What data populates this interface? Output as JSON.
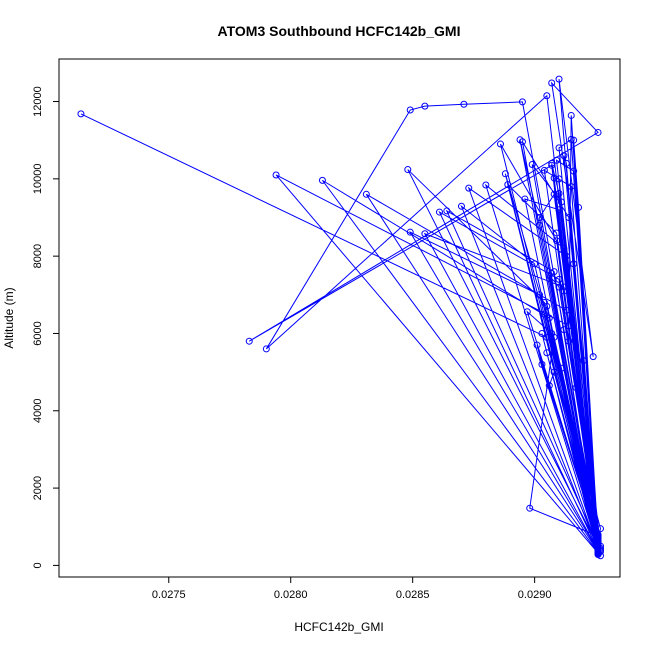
{
  "chart_data": {
    "type": "line",
    "title": "ATOM3 Southbound HCFC142b_GMI",
    "xlabel": "HCFC142b_GMI",
    "ylabel": "Altitude (m)",
    "xlim": [
      0.02705,
      0.02935
    ],
    "ylim": [
      -300,
      13100
    ],
    "xticks": [
      0.0275,
      0.028,
      0.0285,
      0.029
    ],
    "xtick_labels": [
      "0.0275",
      "0.0280",
      "0.0285",
      "0.0290"
    ],
    "yticks": [
      0,
      2000,
      4000,
      6000,
      8000,
      10000,
      12000
    ],
    "ytick_labels": [
      "0",
      "2000",
      "4000",
      "6000",
      "8000",
      "10000",
      "12000"
    ],
    "grid": false,
    "markers": "open-circle",
    "series": [
      {
        "color": "#0000ff",
        "x": [
          0.02714,
          0.02905,
          0.02926,
          0.02905,
          0.02927,
          0.02905,
          0.0279,
          0.02849,
          0.02855,
          0.02871,
          0.02895,
          0.02912,
          0.02926,
          0.0291,
          0.02924,
          0.02907,
          0.02926,
          0.02783,
          0.02907,
          0.02926,
          0.02903,
          0.02926,
          0.02794,
          0.02914,
          0.02926,
          0.02813,
          0.02906,
          0.02926,
          0.02831,
          0.02913,
          0.02927,
          0.02848,
          0.02904,
          0.02926,
          0.02849,
          0.02902,
          0.02926,
          0.02855,
          0.02912,
          0.02926,
          0.02861,
          0.0291,
          0.02927,
          0.02864,
          0.02908,
          0.02926,
          0.0287,
          0.029,
          0.02926,
          0.02873,
          0.02913,
          0.02926,
          0.0288,
          0.02912,
          0.02927,
          0.02886,
          0.02909,
          0.02926,
          0.02889,
          0.02909,
          0.02926,
          0.02894,
          0.02902,
          0.02926,
          0.02895,
          0.02914,
          0.02926,
          0.02896,
          0.0291,
          0.02926,
          0.02899,
          0.02911,
          0.02927,
          0.02902,
          0.02908,
          0.02926,
          0.02904,
          0.02915,
          0.02926,
          0.02908,
          0.0291,
          0.02926,
          0.02909,
          0.02916,
          0.02926,
          0.0291,
          0.02907,
          0.02926,
          0.02913,
          0.02912,
          0.02926,
          0.02915,
          0.0291,
          0.02926,
          0.02918,
          0.02916,
          0.02926,
          0.02908,
          0.02906,
          0.02926,
          0.02901,
          0.02903,
          0.02926,
          0.02897,
          0.02907,
          0.02926,
          0.02916,
          0.0292,
          0.02926,
          0.02888,
          0.02911,
          0.02926,
          0.02908,
          0.02927,
          0.02926,
          0.02915,
          0.02914,
          0.02926,
          0.02905,
          0.02904,
          0.02926,
          0.02912,
          0.02917,
          0.02926,
          0.02898,
          0.02908,
          0.02926,
          0.02906,
          0.0291,
          0.02926
        ],
        "y": [
          11680,
          5900,
          300,
          5500,
          250,
          12150,
          5600,
          11780,
          11880,
          11930,
          11990,
          6100,
          280,
          12580,
          5400,
          12480,
          11200,
          5800,
          10350,
          300,
          6000,
          320,
          10100,
          6200,
          330,
          9960,
          6400,
          350,
          9600,
          6600,
          360,
          10240,
          6800,
          370,
          8620,
          7000,
          380,
          8580,
          7200,
          390,
          9140,
          7400,
          400,
          9170,
          7600,
          410,
          9290,
          7800,
          420,
          9760,
          8000,
          430,
          9840,
          8200,
          440,
          10900,
          8400,
          450,
          9850,
          8600,
          460,
          11010,
          8800,
          470,
          10960,
          9000,
          480,
          9480,
          9200,
          490,
          10370,
          9400,
          500,
          9000,
          9600,
          510,
          10220,
          9800,
          520,
          10020,
          10000,
          530,
          10480,
          10200,
          540,
          9620,
          10400,
          550,
          10400,
          10600,
          560,
          11020,
          10800,
          570,
          9260,
          11000,
          580,
          5000,
          4650,
          600,
          5700,
          5200,
          620,
          6560,
          6000,
          640,
          7800,
          5300,
          660,
          10130,
          5100,
          680,
          5500,
          950,
          700,
          11640,
          5800,
          720,
          6700,
          6500,
          740,
          7100,
          4600,
          760,
          1480,
          5900,
          780,
          7500,
          7200,
          800
        ]
      }
    ]
  }
}
